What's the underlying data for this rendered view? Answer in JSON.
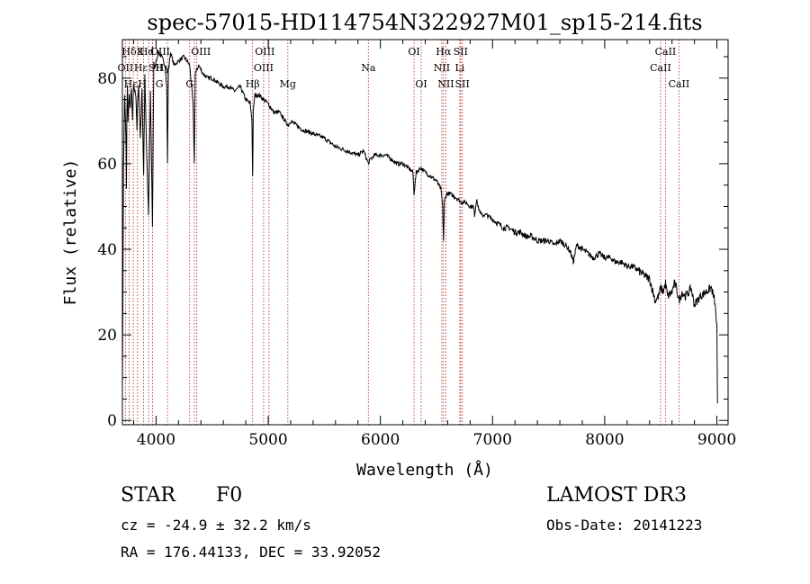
{
  "chart_data": {
    "type": "line",
    "title": "spec-57015-HD114754N322927M01_sp15-214.fits",
    "xlabel": "Wavelength (Å)",
    "ylabel": "Flux (relative)",
    "xlim": [
      3700,
      9100
    ],
    "ylim": [
      -1,
      89
    ],
    "xticks": [
      4000,
      5000,
      6000,
      7000,
      8000,
      9000
    ],
    "yticks": [
      0,
      20,
      40,
      60,
      80
    ],
    "grid": false,
    "colors": {
      "spectrum": "#000000",
      "line_marker": "#b22222",
      "text": "#000000"
    },
    "series": [
      {
        "name": "spectrum",
        "x": [
          3700,
          3705,
          3710,
          3720,
          3734,
          3736,
          3740,
          3745,
          3750,
          3760,
          3770,
          3780,
          3790,
          3800,
          3810,
          3820,
          3830,
          3835,
          3845,
          3860,
          3875,
          3889,
          3900,
          3915,
          3933,
          3950,
          3968,
          3980,
          3990,
          4000,
          4020,
          4050,
          4080,
          4095,
          4102,
          4110,
          4130,
          4160,
          4200,
          4250,
          4300,
          4330,
          4341,
          4350,
          4380,
          4420,
          4460,
          4500,
          4550,
          4600,
          4650,
          4700,
          4750,
          4800,
          4840,
          4855,
          4861,
          4867,
          4880,
          4920,
          4960,
          5000,
          5050,
          5100,
          5150,
          5180,
          5200,
          5250,
          5300,
          5400,
          5500,
          5600,
          5700,
          5800,
          5850,
          5893,
          5910,
          5950,
          6000,
          6050,
          6100,
          6150,
          6200,
          6250,
          6290,
          6300,
          6320,
          6360,
          6400,
          6450,
          6500,
          6540,
          6555,
          6563,
          6571,
          6590,
          6620,
          6680,
          6720,
          6760,
          6800,
          6830,
          6840,
          6860,
          6870,
          6900,
          6950,
          7000,
          7050,
          7100,
          7150,
          7200,
          7250,
          7300,
          7350,
          7400,
          7450,
          7500,
          7550,
          7600,
          7650,
          7680,
          7700,
          7720,
          7750,
          7800,
          7850,
          7900,
          7950,
          8000,
          8050,
          8100,
          8150,
          8200,
          8250,
          8300,
          8350,
          8400,
          8420,
          8450,
          8480,
          8500,
          8520,
          8542,
          8560,
          8600,
          8620,
          8640,
          8662,
          8690,
          8720,
          8750,
          8770,
          8800,
          8850,
          8900,
          8950,
          8980,
          9000,
          9005
        ],
        "values": [
          8,
          30,
          60,
          76,
          64,
          54,
          72,
          78,
          70,
          76,
          73,
          78,
          70,
          78,
          77,
          76,
          68,
          74,
          78,
          66,
          78,
          57,
          81,
          64,
          48,
          77,
          45,
          84,
          82,
          84,
          86,
          85,
          83,
          78,
          60,
          82,
          86,
          83,
          84,
          85,
          83,
          74,
          60,
          81,
          83,
          81,
          80,
          80,
          79,
          78,
          78,
          77,
          78,
          75,
          74,
          70,
          57,
          72,
          76,
          76,
          75,
          74,
          72,
          72,
          70,
          69,
          70,
          69,
          68,
          67,
          66,
          64,
          63,
          62,
          63,
          60,
          61,
          62,
          62,
          62,
          61,
          60,
          60,
          59,
          58,
          53,
          58,
          59,
          58,
          57,
          56,
          54,
          50,
          42,
          51,
          53,
          53,
          52,
          51,
          51,
          50,
          50,
          48,
          52,
          50,
          48,
          48,
          47,
          46,
          45,
          45,
          44,
          44,
          43,
          43,
          42,
          42,
          42,
          41,
          42,
          41,
          40,
          39,
          37,
          41,
          40,
          39,
          38,
          39,
          38,
          38,
          37,
          37,
          36,
          36,
          35,
          34,
          33,
          31,
          28,
          29,
          31,
          30,
          32,
          29,
          30,
          32,
          31,
          28,
          30,
          29,
          30,
          31,
          27,
          29,
          30,
          31,
          28,
          22,
          4
        ]
      }
    ],
    "annotations": [
      {
        "label": "Hδ",
        "x": 3760,
        "row": 1
      },
      {
        "label": "OII",
        "x": 3727,
        "row": 2
      },
      {
        "label": "Hε",
        "x": 3775,
        "row": 3
      },
      {
        "label": "K",
        "x": 3860,
        "row": 1
      },
      {
        "label": "Hε",
        "x": 3865,
        "row": 2
      },
      {
        "label": "H",
        "x": 3878,
        "row": 3
      },
      {
        "label": "Hd",
        "x": 3918,
        "row": 1
      },
      {
        "label": "SII",
        "x": 3998,
        "row": 2
      },
      {
        "label": "G",
        "x": 4030,
        "row": 3
      },
      {
        "label": "OIII",
        "x": 4037,
        "row": 1
      },
      {
        "label": "Hγ",
        "x": 4060,
        "row": 2
      },
      {
        "label": "OIII",
        "x": 4400,
        "row": 1
      },
      {
        "label": "G",
        "x": 4300,
        "row": 3
      },
      {
        "label": "OIII",
        "x": 4970,
        "row": 1
      },
      {
        "label": "OIII",
        "x": 4959,
        "row": 2
      },
      {
        "label": "Hβ",
        "x": 4861,
        "row": 3
      },
      {
        "label": "Mg",
        "x": 5175,
        "row": 3
      },
      {
        "label": "Na",
        "x": 5893,
        "row": 2
      },
      {
        "label": "OI",
        "x": 6300,
        "row": 1
      },
      {
        "label": "OI",
        "x": 6364,
        "row": 3
      },
      {
        "label": "Hα",
        "x": 6563,
        "row": 1
      },
      {
        "label": "SII",
        "x": 6716,
        "row": 1
      },
      {
        "label": "NII",
        "x": 6548,
        "row": 2
      },
      {
        "label": "Li",
        "x": 6708,
        "row": 2
      },
      {
        "label": "NII",
        "x": 6584,
        "row": 3
      },
      {
        "label": "SII",
        "x": 6731,
        "row": 3
      },
      {
        "label": "CaII",
        "x": 8542,
        "row": 1
      },
      {
        "label": "CaII",
        "x": 8498,
        "row": 2
      },
      {
        "label": "CaII",
        "x": 8662,
        "row": 3
      }
    ],
    "marker_lines": [
      3727,
      3760,
      3797,
      3835,
      3889,
      3934,
      3968,
      4102,
      4300,
      4341,
      4363,
      4861,
      4959,
      5007,
      5175,
      5893,
      6300,
      6364,
      6548,
      6563,
      6584,
      6708,
      6716,
      6731,
      8498,
      8542,
      8662
    ]
  },
  "info": {
    "object_class": "STAR",
    "subclass": "F0",
    "survey": "LAMOST DR3",
    "redshift_text": "cz = -24.9 ± 32.2 km/s",
    "obs_date_text": "Obs-Date: 20141223",
    "coords_text": "RA = 176.44133, DEC =  33.92052"
  }
}
